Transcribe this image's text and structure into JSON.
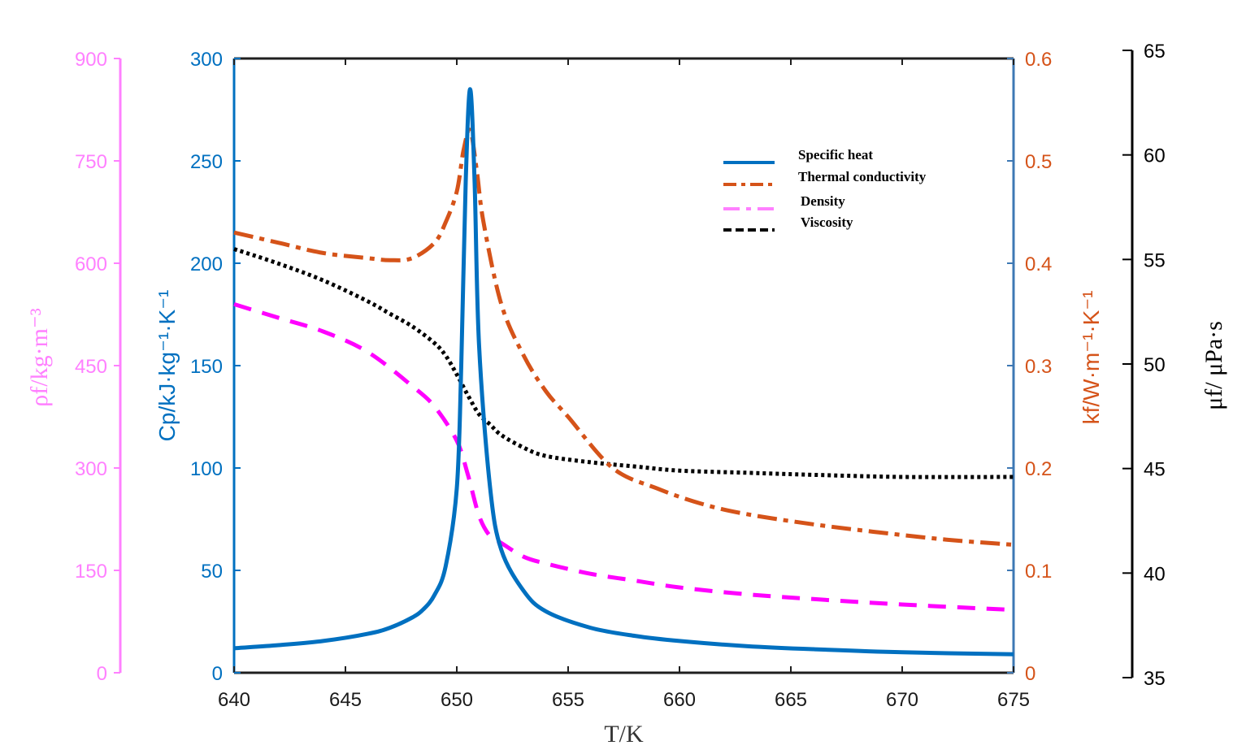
{
  "colors": {
    "cp": "#0070c0",
    "k": "#d55319",
    "rho_axis": "#ff80ff",
    "rho_curve": "#ff00ff",
    "mu": "#000000",
    "frame": "#1f1f1f",
    "right_spine": "#3d78b4"
  },
  "chart_data": {
    "type": "line",
    "xlabel": "T/K",
    "xlim": [
      640,
      675
    ],
    "x_ticks": [
      640,
      645,
      650,
      655,
      660,
      665,
      670,
      675
    ],
    "axes": {
      "cp": {
        "label": "Cp/kJ·kg⁻¹·K⁻¹",
        "ylim": [
          0,
          300
        ],
        "ticks": [
          0,
          50,
          100,
          150,
          200,
          250,
          300
        ]
      },
      "rho": {
        "label": "ρf/kg·m⁻³",
        "ylim": [
          0,
          900
        ],
        "ticks": [
          0,
          150,
          300,
          450,
          600,
          750,
          900
        ]
      },
      "k": {
        "label": "kf/W·m⁻¹·K⁻¹",
        "ylim": [
          0,
          0.6
        ],
        "ticks": [
          0,
          0.1,
          0.2,
          0.3,
          0.4,
          0.5,
          0.6
        ]
      },
      "mu": {
        "label": "μf/ μPa·s",
        "ylim": [
          35,
          65
        ],
        "ticks": [
          35,
          40,
          45,
          50,
          55,
          60,
          65
        ]
      }
    },
    "series": [
      {
        "name": "Specific heat",
        "axis": "cp",
        "style": "solid",
        "x": [
          640,
          642,
          644,
          646,
          647,
          648,
          648.5,
          649,
          649.5,
          650,
          650.2,
          650.4,
          650.6,
          650.8,
          651,
          651.5,
          652,
          653,
          654,
          656,
          658,
          660,
          663,
          666,
          670,
          675
        ],
        "y": [
          12,
          13.5,
          15.5,
          19,
          22,
          27,
          31,
          38,
          52,
          90,
          150,
          240,
          285,
          240,
          160,
          90,
          60,
          40,
          30,
          22,
          18,
          15.5,
          13,
          11.5,
          10,
          9
        ]
      },
      {
        "name": "Thermal conductivity",
        "axis": "k",
        "style": "dashdot",
        "x": [
          640,
          642,
          644,
          646,
          647,
          648,
          649,
          649.5,
          650,
          650.3,
          650.6,
          650.9,
          651.2,
          652,
          653,
          654,
          655,
          657,
          659,
          661,
          663,
          666,
          669,
          672,
          675
        ],
        "y": [
          0.43,
          0.42,
          0.41,
          0.405,
          0.403,
          0.405,
          0.42,
          0.44,
          0.47,
          0.51,
          0.53,
          0.49,
          0.44,
          0.36,
          0.31,
          0.275,
          0.25,
          0.2,
          0.18,
          0.165,
          0.155,
          0.145,
          0.137,
          0.13,
          0.125
        ]
      },
      {
        "name": "Density",
        "axis": "rho",
        "style": "dashed",
        "x": [
          640,
          642,
          644,
          646,
          648,
          649,
          650,
          650.5,
          651,
          651.5,
          652,
          653,
          654,
          656,
          658,
          660,
          663,
          666,
          670,
          675
        ],
        "y": [
          540,
          520,
          500,
          470,
          420,
          390,
          340,
          290,
          230,
          200,
          190,
          170,
          160,
          145,
          135,
          125,
          115,
          108,
          100,
          92
        ]
      },
      {
        "name": "Viscosity",
        "axis": "mu",
        "style": "dotted",
        "x": [
          640,
          642,
          644,
          646,
          647,
          648,
          649,
          649.5,
          650,
          650.5,
          651,
          651.5,
          652,
          653,
          654,
          656,
          658,
          660,
          663,
          666,
          670,
          675
        ],
        "y": [
          55.5,
          54.8,
          54,
          53,
          52.4,
          51.8,
          51,
          50.4,
          49.5,
          48.5,
          47.6,
          47.1,
          46.6,
          46,
          45.6,
          45.3,
          45.1,
          44.9,
          44.8,
          44.7,
          44.6,
          44.6
        ]
      }
    ],
    "legend": {
      "position": "top-right",
      "entries": [
        "Specific heat",
        "Thermal conductivity",
        "Density",
        "Viscosity"
      ]
    }
  }
}
